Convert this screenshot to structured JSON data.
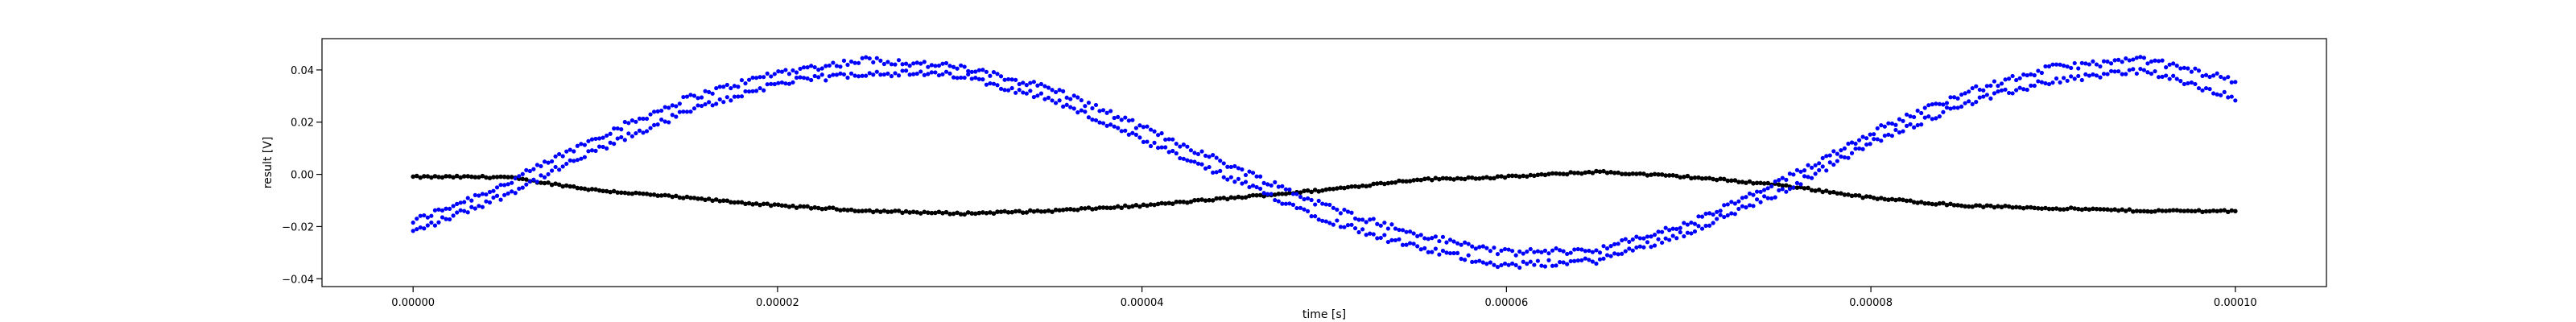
{
  "chart_data": {
    "type": "scatter",
    "title": "",
    "xlabel": "time [s]",
    "ylabel": "result [V]",
    "xlim": [
      -5e-06,
      0.000105
    ],
    "ylim": [
      -0.043,
      0.052
    ],
    "grid": false,
    "x_ticks": [
      "0.00000",
      "0.00002",
      "0.00004",
      "0.00006",
      "0.00008",
      "0.00010"
    ],
    "x_tick_values": [
      0,
      2e-05,
      4e-05,
      6e-05,
      8e-05,
      0.0001
    ],
    "y_ticks": [
      "0.04",
      "0.02",
      "0.00",
      "−0.02",
      "−0.04"
    ],
    "y_tick_values": [
      0.04,
      0.02,
      0,
      -0.02,
      -0.04
    ],
    "series": [
      {
        "color": "#0000ff",
        "marker": "dot",
        "x": [
          0,
          5e-06,
          1e-05,
          1.5e-05,
          2e-05,
          2.5e-05,
          3e-05,
          3.5e-05,
          4e-05,
          4.5e-05,
          5e-05,
          5.5e-05,
          6e-05,
          6.5e-05,
          7e-05,
          7.5e-05,
          8e-05,
          8.5e-05,
          9e-05,
          9.5e-05,
          0.0001
        ],
        "y_upper": [
          -0.018,
          -0.004,
          0.014,
          0.029,
          0.039,
          0.044,
          0.041,
          0.033,
          0.018,
          0.003,
          -0.012,
          -0.023,
          -0.03,
          -0.029,
          -0.019,
          -0.003,
          0.016,
          0.031,
          0.041,
          0.044,
          0.036
        ],
        "y_lower": [
          -0.022,
          -0.008,
          0.009,
          0.024,
          0.035,
          0.039,
          0.038,
          0.029,
          0.013,
          -0.002,
          -0.017,
          -0.028,
          -0.035,
          -0.033,
          -0.022,
          -0.007,
          0.012,
          0.027,
          0.036,
          0.04,
          0.029
        ]
      },
      {
        "color": "#000000",
        "marker": "dot",
        "x": [
          0,
          5e-06,
          1e-05,
          1.5e-05,
          2e-05,
          2.5e-05,
          3e-05,
          3.5e-05,
          4e-05,
          4.5e-05,
          5e-05,
          5.5e-05,
          6e-05,
          6.5e-05,
          7e-05,
          7.5e-05,
          8e-05,
          8.5e-05,
          9e-05,
          9.5e-05,
          0.0001
        ],
        "y": [
          -0.001,
          -0.001,
          -0.006,
          -0.009,
          -0.012,
          -0.014,
          -0.015,
          -0.014,
          -0.012,
          -0.009,
          -0.006,
          -0.002,
          -0.001,
          0.001,
          -0.001,
          -0.004,
          -0.009,
          -0.012,
          -0.013,
          -0.014,
          -0.014
        ]
      }
    ]
  }
}
